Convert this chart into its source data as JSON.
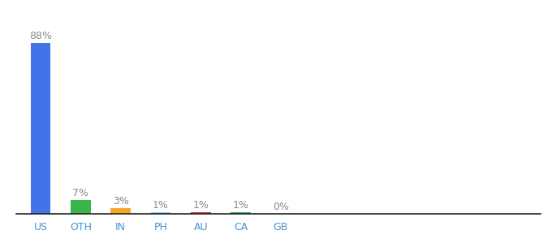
{
  "categories": [
    "US",
    "OTH",
    "IN",
    "PH",
    "AU",
    "CA",
    "GB"
  ],
  "values": [
    88,
    7,
    3,
    1,
    1,
    1,
    0
  ],
  "labels": [
    "88%",
    "7%",
    "3%",
    "1%",
    "1%",
    "1%",
    "0%"
  ],
  "colors": [
    "#4472e8",
    "#3ab54a",
    "#f5a623",
    "#7ecef4",
    "#c0392b",
    "#27ae60",
    "#bdc3c7"
  ],
  "background_color": "#ffffff",
  "label_color": "#888888",
  "xlabel_color": "#4a90d9",
  "bar_width": 0.5,
  "ylim": [
    0,
    100
  ],
  "figsize": [
    6.8,
    3.0
  ],
  "dpi": 100
}
